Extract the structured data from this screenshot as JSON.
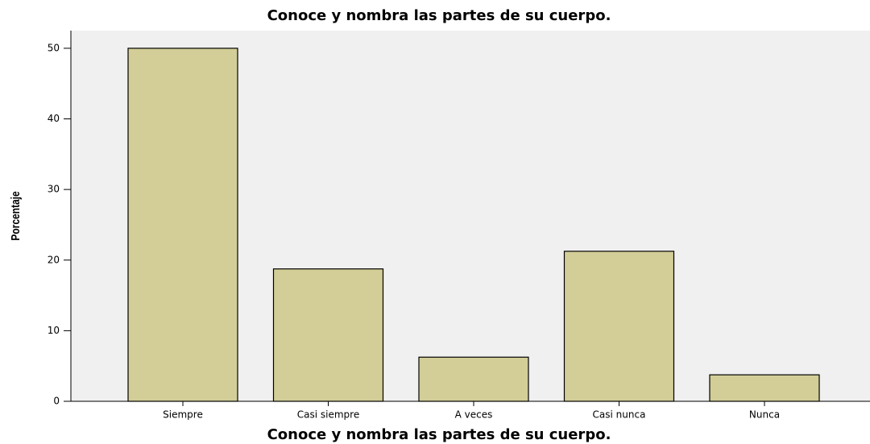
{
  "chart_data": {
    "type": "bar",
    "title": "Conoce y nombra las partes de su cuerpo.",
    "x_label": "Conoce y nombra las partes de su cuerpo.",
    "y_label": "Porcentaje",
    "categories": [
      "Siempre",
      "Casi siempre",
      "A veces",
      "Casi nunca",
      "Nunca"
    ],
    "values": [
      50,
      18.75,
      6.25,
      21.25,
      3.75
    ],
    "color": "#d3ce97",
    "ylim": [
      0,
      52.5
    ],
    "yticks": [
      0,
      10,
      20,
      30,
      40,
      50
    ],
    "grid": false
  }
}
